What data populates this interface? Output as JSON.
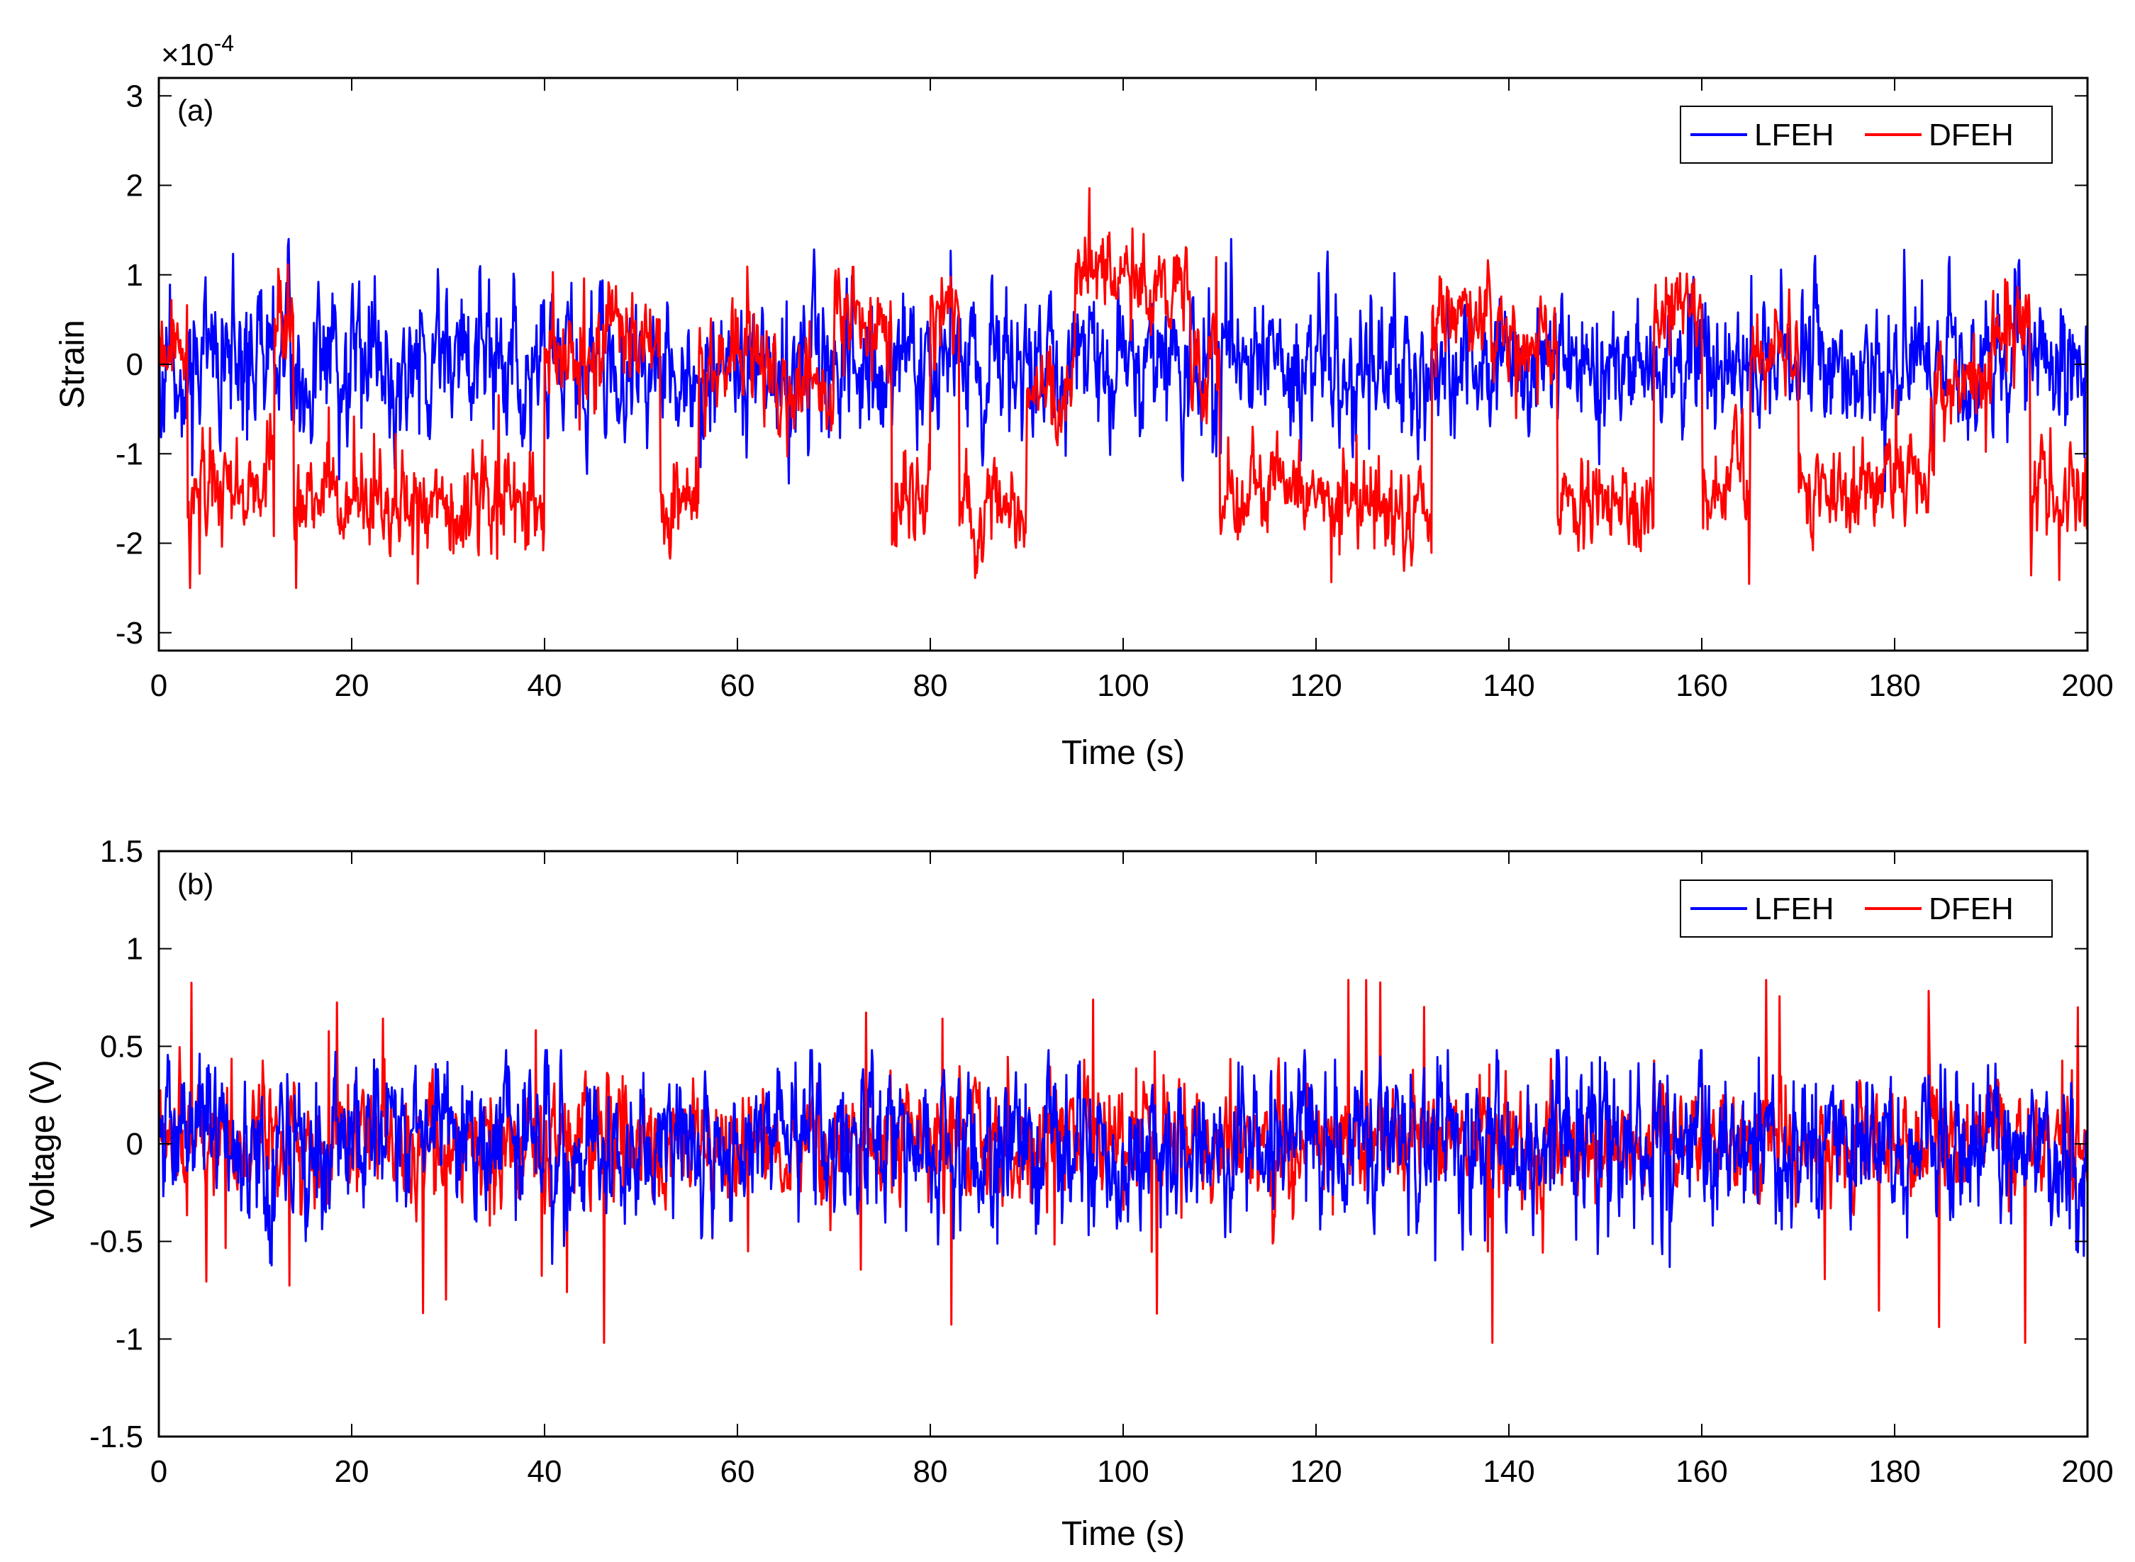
{
  "chart_data": [
    {
      "type": "line",
      "panel_label": "(a)",
      "xlabel": "Time (s)",
      "ylabel": "Strain",
      "xlim": [
        0,
        200
      ],
      "ylim": [
        -3.2,
        3.2
      ],
      "xticks": [
        0,
        20,
        40,
        60,
        80,
        100,
        120,
        140,
        160,
        180,
        200
      ],
      "yticks": [
        -3,
        -2,
        -1,
        0,
        1,
        2,
        3
      ],
      "y_exponent_label": "×10",
      "y_exponent_power": "-4",
      "grid": false,
      "legend": {
        "placement": "top-right",
        "orientation": "horizontal",
        "entries": [
          "LFEH",
          "DFEH"
        ]
      },
      "series": [
        {
          "name": "LFEH",
          "color": "#0000ff",
          "mean": 0.0,
          "noise_scale": 0.33,
          "spike_amplitude": 0.6,
          "clip": [
            -1.8,
            1.4
          ],
          "seed": 11,
          "regime": "none"
        },
        {
          "name": "DFEH",
          "color": "#ff0000",
          "noise_scale": 0.22,
          "spike_amplitude": 0.9,
          "clip": [
            -2.5,
            2.3
          ],
          "seed": 23,
          "regime": "two-well",
          "well_segments": [
            [
              0,
              3,
              0.0
            ],
            [
              3,
              12,
              -1.4
            ],
            [
              12,
              14,
              0.5
            ],
            [
              14,
              40,
              -1.6
            ],
            [
              40,
              46,
              0.1
            ],
            [
              46,
              52,
              0.3
            ],
            [
              52,
              56,
              -1.6
            ],
            [
              56,
              64,
              0.0
            ],
            [
              64,
              70,
              -0.3
            ],
            [
              70,
              76,
              0.5
            ],
            [
              76,
              80,
              -1.7
            ],
            [
              80,
              83,
              0.5
            ],
            [
              83,
              90,
              -1.6
            ],
            [
              90,
              95,
              -0.3
            ],
            [
              95,
              107,
              1.0
            ],
            [
              107,
              110,
              0.0
            ],
            [
              110,
              118,
              -1.4
            ],
            [
              118,
              125,
              -1.5
            ],
            [
              125,
              132,
              -1.6
            ],
            [
              132,
              138,
              0.6
            ],
            [
              138,
              145,
              0.2
            ],
            [
              145,
              155,
              -1.6
            ],
            [
              155,
              160,
              0.6
            ],
            [
              160,
              165,
              -1.3
            ],
            [
              165,
              170,
              0.1
            ],
            [
              170,
              178,
              -1.5
            ],
            [
              178,
              184,
              -1.3
            ],
            [
              184,
              190,
              -0.2
            ],
            [
              190,
              194,
              0.4
            ],
            [
              194,
              200,
              -1.5
            ]
          ]
        }
      ]
    },
    {
      "type": "line",
      "panel_label": "(b)",
      "xlabel": "Time (s)",
      "ylabel": "Voltage (V)",
      "xlim": [
        0,
        200
      ],
      "ylim": [
        -1.5,
        1.5
      ],
      "xticks": [
        0,
        20,
        40,
        60,
        80,
        100,
        120,
        140,
        160,
        180,
        200
      ],
      "yticks": [
        -1.5,
        -1,
        -0.5,
        0,
        0.5,
        1,
        1.5
      ],
      "grid": false,
      "legend": {
        "placement": "top-right",
        "orientation": "horizontal",
        "entries": [
          "LFEH",
          "DFEH"
        ]
      },
      "series": [
        {
          "name": "DFEH",
          "color": "#ff0000",
          "noise_scale": 0.12,
          "spike_amplitude": 0.9,
          "clip": [
            -1.02,
            0.84
          ],
          "seed": 37,
          "regime": "none"
        },
        {
          "name": "LFEH",
          "color": "#0000ff",
          "noise_scale": 0.16,
          "spike_amplitude": 0.35,
          "clip": [
            -0.65,
            0.48
          ],
          "seed": 53,
          "regime": "none"
        }
      ]
    }
  ]
}
